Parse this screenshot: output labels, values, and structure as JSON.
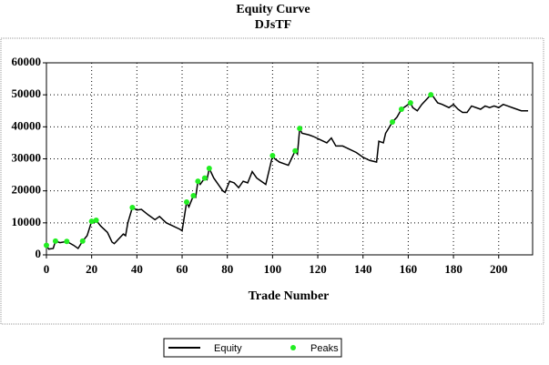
{
  "chart_data": {
    "type": "line",
    "title": "Equity Curve",
    "subtitle": "DJsTF",
    "x_label": "Trade Number",
    "xlim": [
      0,
      215
    ],
    "ylim": [
      0,
      60000
    ],
    "xticks": [
      0,
      20,
      40,
      60,
      80,
      100,
      120,
      140,
      160,
      180,
      200
    ],
    "yticks": [
      0,
      10000,
      20000,
      30000,
      40000,
      50000,
      60000
    ],
    "grid": true,
    "legend": "bottom",
    "series": [
      {
        "name": "Equity",
        "color": "#000000",
        "style": "line",
        "x": [
          0,
          1,
          3,
          4,
          6,
          9,
          12,
          14,
          16,
          18,
          20,
          21,
          22,
          24,
          27,
          29,
          30,
          32,
          34,
          35,
          36,
          38,
          40,
          42,
          45,
          48,
          50,
          53,
          56,
          59,
          60,
          62,
          63,
          65,
          66,
          67,
          68,
          70,
          71,
          72,
          74,
          76,
          78,
          79,
          81,
          83,
          85,
          87,
          89,
          91,
          93,
          95,
          97,
          100,
          101,
          103,
          105,
          107,
          110,
          111,
          112,
          113,
          116,
          118,
          121,
          124,
          126,
          128,
          131,
          134,
          137,
          140,
          143,
          146,
          147,
          149,
          150,
          153,
          155,
          157,
          158,
          161,
          162,
          164,
          166,
          170,
          171,
          173,
          175,
          178,
          180,
          182,
          184,
          186,
          188,
          190,
          192,
          194,
          196,
          198,
          200,
          202,
          204,
          206,
          208,
          210,
          213
        ],
        "values": [
          3000,
          1800,
          2000,
          4300,
          3800,
          4200,
          3000,
          2000,
          4300,
          6000,
          10500,
          10000,
          10800,
          9000,
          7000,
          4000,
          3500,
          5000,
          6500,
          6000,
          10000,
          14800,
          14000,
          14200,
          12500,
          11000,
          12000,
          10000,
          9000,
          8000,
          7500,
          16500,
          15000,
          18500,
          18000,
          23000,
          22000,
          24000,
          23500,
          27000,
          24000,
          22000,
          20000,
          19500,
          23000,
          22500,
          21000,
          23000,
          22500,
          26000,
          24000,
          23000,
          22000,
          31000,
          30000,
          29000,
          28500,
          28000,
          32500,
          31500,
          39500,
          38000,
          37500,
          37000,
          36000,
          35000,
          36500,
          34000,
          34000,
          33000,
          32000,
          30500,
          29500,
          29000,
          35500,
          35000,
          38000,
          41500,
          43000,
          45500,
          46000,
          47500,
          46000,
          45000,
          47000,
          50000,
          49500,
          47500,
          47000,
          46000,
          47000,
          45500,
          44500,
          44500,
          46500,
          46000,
          45500,
          46500,
          46000,
          46500,
          46000,
          47000,
          46500,
          46000,
          45500,
          45000,
          45000
        ]
      },
      {
        "name": "Peaks",
        "color": "#22ee22",
        "style": "dot",
        "x": [
          0,
          4,
          9,
          16,
          20,
          22,
          38,
          62,
          65,
          67,
          70,
          72,
          100,
          110,
          112,
          153,
          157,
          161,
          170
        ],
        "values": [
          3000,
          4300,
          4200,
          4300,
          10500,
          10800,
          14800,
          16500,
          18500,
          23000,
          24000,
          27000,
          31000,
          32500,
          39500,
          41500,
          45500,
          47500,
          50000
        ]
      }
    ]
  }
}
